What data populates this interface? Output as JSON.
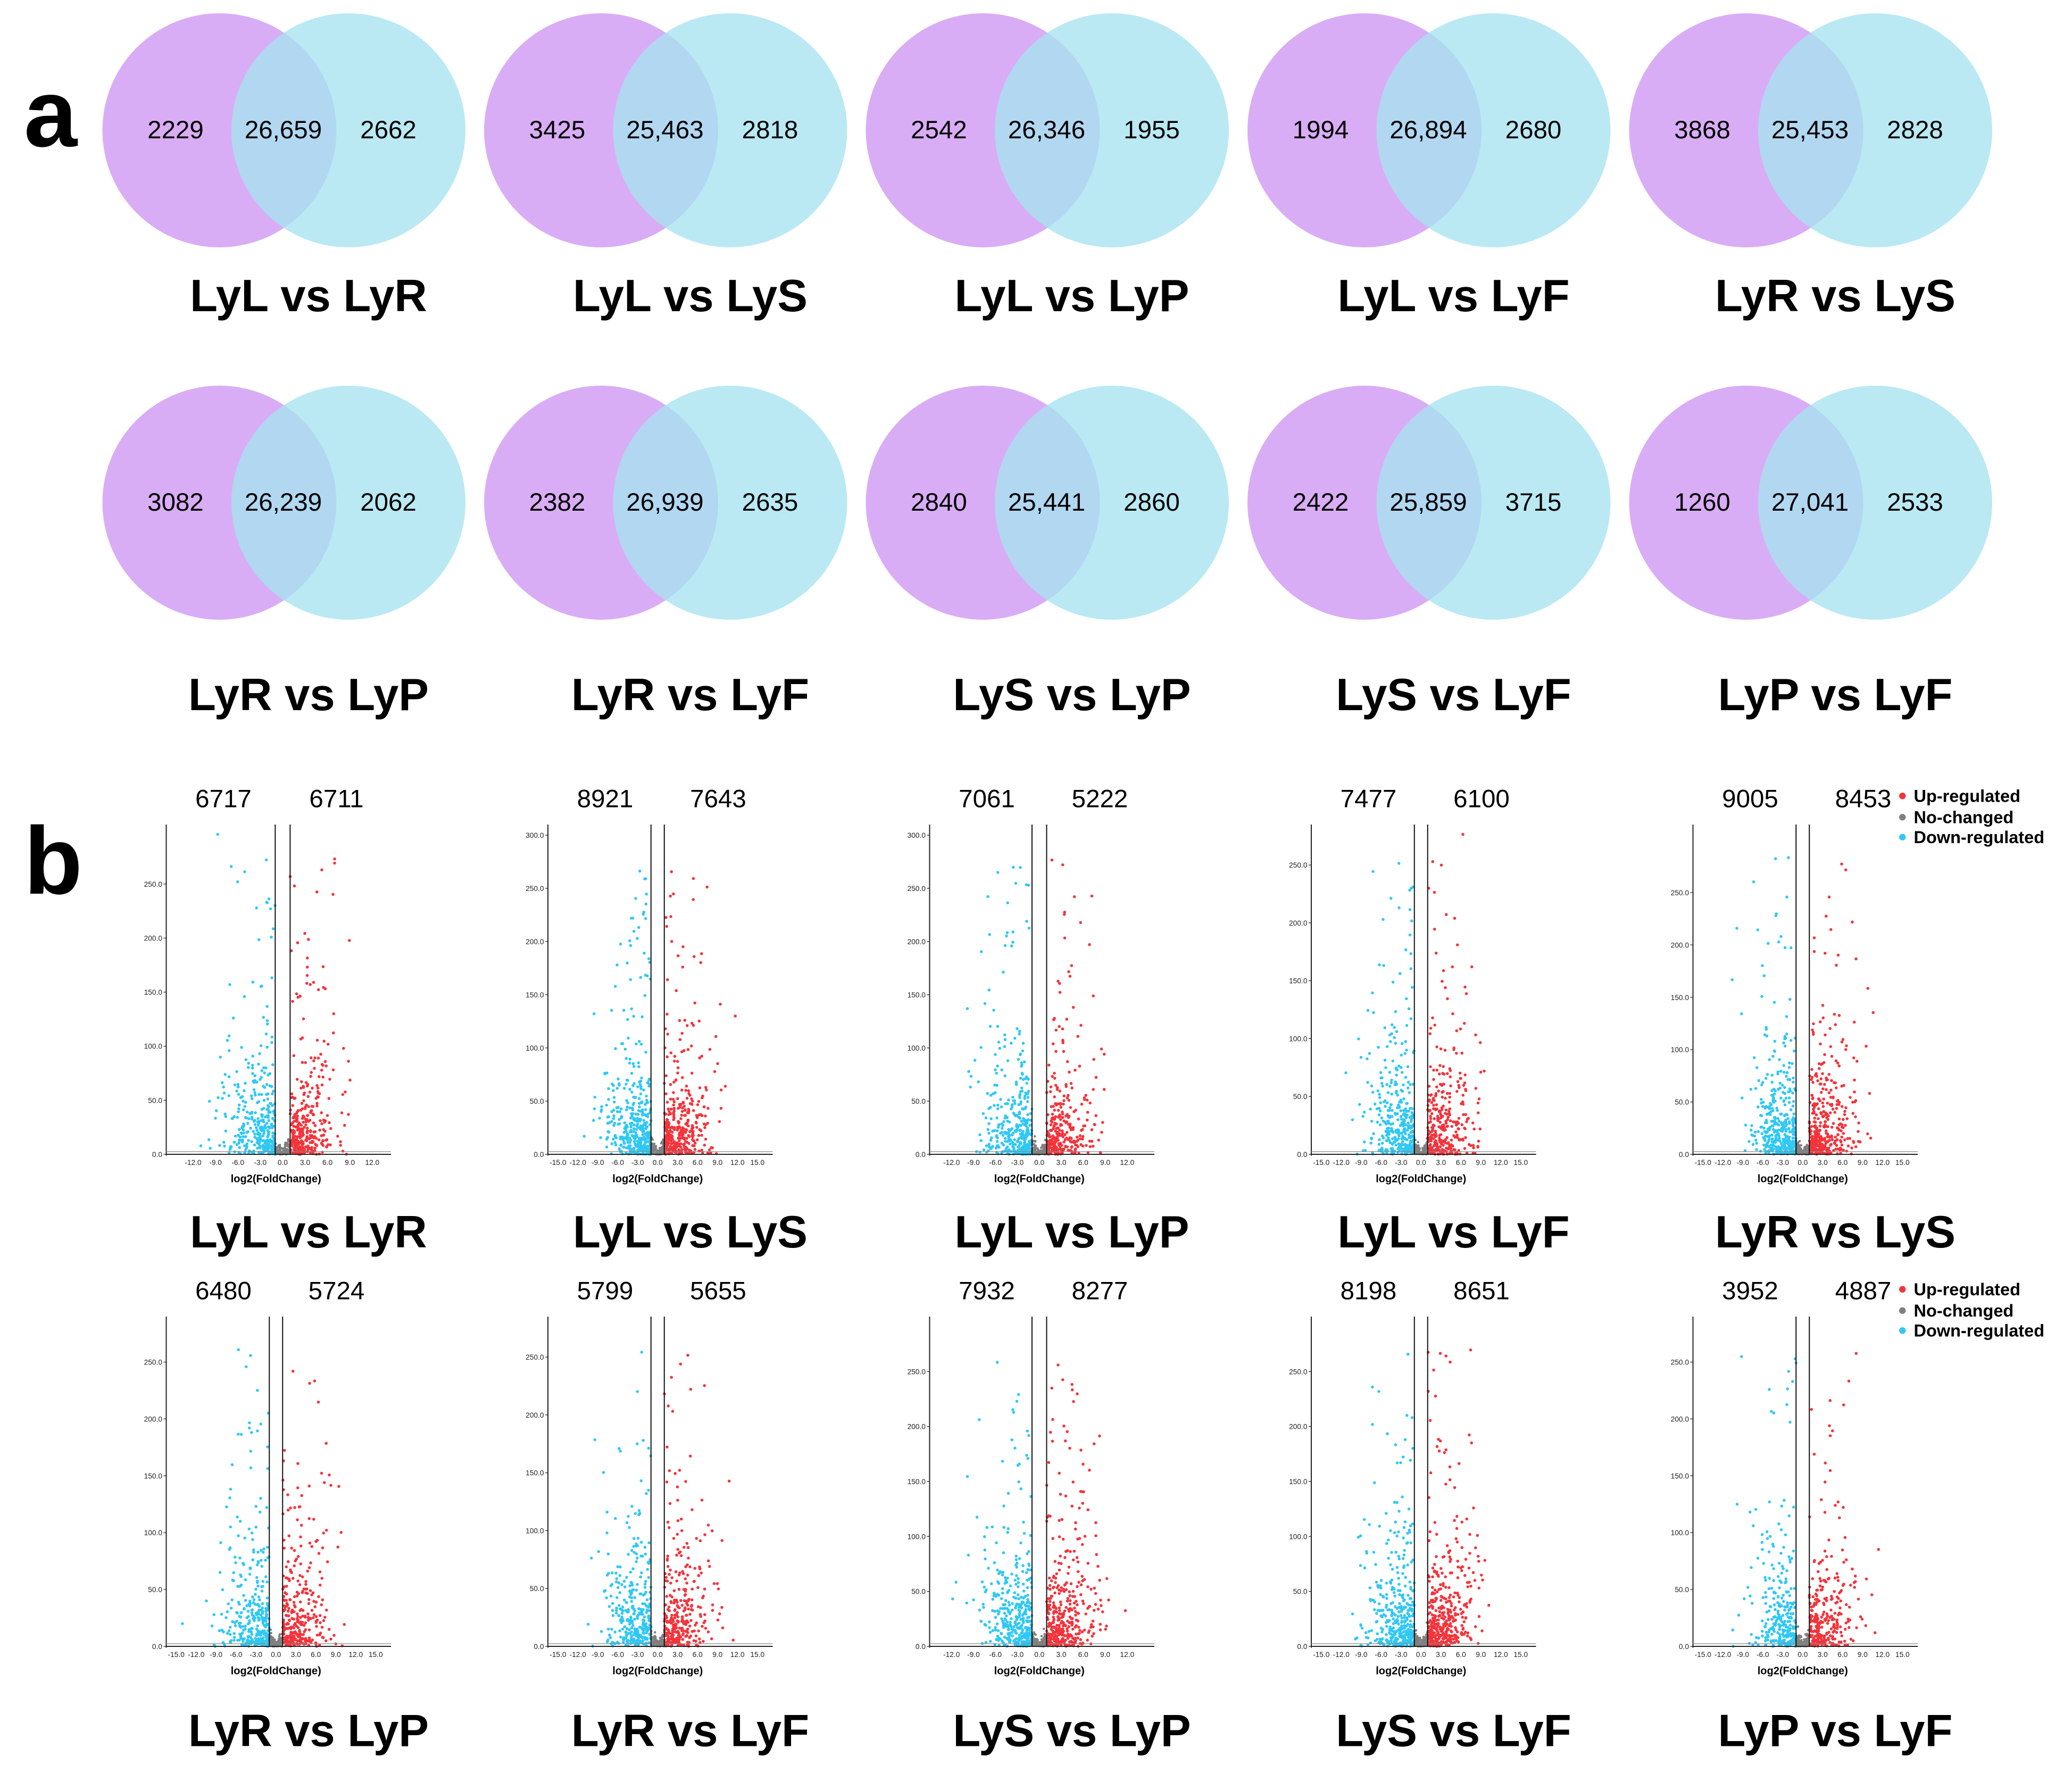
{
  "panel_labels": {
    "a": "a",
    "b": "b"
  },
  "colors": {
    "venn_left": "#d9adf5",
    "venn_right": "#a6e3f0",
    "up": "#f5333b",
    "none": "#7f7f7f",
    "down": "#2fc8f5"
  },
  "legend": {
    "up": "Up-regulated",
    "none": "No-changed",
    "down": "Down-regulated"
  },
  "chart_data": [
    {
      "type": "venn",
      "title": "LyL vs LyR",
      "left": "2229",
      "middle": "26,659",
      "right": "2662"
    },
    {
      "type": "venn",
      "title": "LyL vs LyS",
      "left": "3425",
      "middle": "25,463",
      "right": "2818"
    },
    {
      "type": "venn",
      "title": "LyL vs LyP",
      "left": "2542",
      "middle": "26,346",
      "right": "1955"
    },
    {
      "type": "venn",
      "title": "LyL vs LyF",
      "left": "1994",
      "middle": "26,894",
      "right": "2680"
    },
    {
      "type": "venn",
      "title": "LyR vs LyS",
      "left": "3868",
      "middle": "25,453",
      "right": "2828"
    },
    {
      "type": "venn",
      "title": "LyR vs LyP",
      "left": "3082",
      "middle": "26,239",
      "right": "2062"
    },
    {
      "type": "venn",
      "title": "LyR vs LyF",
      "left": "2382",
      "middle": "26,939",
      "right": "2635"
    },
    {
      "type": "venn",
      "title": "LyS vs LyP",
      "left": "2840",
      "middle": "25,441",
      "right": "2860"
    },
    {
      "type": "venn",
      "title": "LyS vs LyF",
      "left": "2422",
      "middle": "25,859",
      "right": "3715"
    },
    {
      "type": "venn",
      "title": "LyP vs LyF",
      "left": "1260",
      "middle": "27,041",
      "right": "2533"
    },
    {
      "type": "scatter",
      "title": "LyL vs LyR",
      "down": "6717",
      "up": "6711",
      "xlabel": "log2(FoldChange)",
      "xlim": [
        -15.6,
        13.8
      ],
      "xticks": [
        "-12.0",
        "-9.0",
        "-6.0",
        "-3.0",
        "0.0",
        "3.0",
        "6.0",
        "9.0",
        "12.0"
      ],
      "ylim": [
        0,
        305
      ],
      "yticks": [
        "0.0",
        "50.0",
        "100.0",
        "150.0",
        "200.0",
        "250.0"
      ],
      "threshold": 1
    },
    {
      "type": "scatter",
      "title": "LyL vs LyS",
      "down": "8921",
      "up": "7643",
      "xlabel": "log2(FoldChange)",
      "xlim": [
        -16.5,
        16.5
      ],
      "xticks": [
        "-15.0",
        "-12.0",
        "-9.0",
        "-6.0",
        "-3.0",
        "0.0",
        "3.0",
        "6.0",
        "9.0",
        "12.0",
        "15.0"
      ],
      "ylim": [
        0,
        310
      ],
      "yticks": [
        "0.0",
        "50.0",
        "100.0",
        "150.0",
        "200.0",
        "250.0",
        "300.0"
      ],
      "threshold": 1
    },
    {
      "type": "scatter",
      "title": "LyL vs LyP",
      "down": "7061",
      "up": "5222",
      "xlabel": "log2(FoldChange)",
      "xlim": [
        -15,
        15
      ],
      "xticks": [
        "-12.0",
        "-9.0",
        "-6.0",
        "-3.0",
        "0.0",
        "3.0",
        "6.0",
        "9.0",
        "12.0"
      ],
      "ylim": [
        0,
        310
      ],
      "yticks": [
        "0.0",
        "50.0",
        "100.0",
        "150.0",
        "200.0",
        "250.0",
        "300.0"
      ],
      "threshold": 1
    },
    {
      "type": "scatter",
      "title": "LyL vs LyF",
      "down": "7477",
      "up": "6100",
      "xlabel": "log2(FoldChange)",
      "xlim": [
        -16.5,
        16.5
      ],
      "xticks": [
        "-15.0",
        "-12.0",
        "-9.0",
        "-6.0",
        "-3.0",
        "0.0",
        "3.0",
        "6.0",
        "9.0",
        "12.0",
        "15.0"
      ],
      "ylim": [
        0,
        285
      ],
      "yticks": [
        "0.0",
        "50.0",
        "100.0",
        "150.0",
        "200.0",
        "250.0"
      ],
      "threshold": 1
    },
    {
      "type": "scatter",
      "title": "LyR vs LyS",
      "down": "9005",
      "up": "8453",
      "xlabel": "log2(FoldChange)",
      "xlim": [
        -16.5,
        16.5
      ],
      "xticks": [
        "-15.0",
        "-12.0",
        "-9.0",
        "-6.0",
        "-3.0",
        "0.0",
        "3.0",
        "6.0",
        "9.0",
        "12.0",
        "15.0"
      ],
      "ylim": [
        0,
        315
      ],
      "yticks": [
        "0.0",
        "50.0",
        "100.0",
        "150.0",
        "200.0",
        "250.0"
      ],
      "threshold": 1
    },
    {
      "type": "scatter",
      "title": "LyR vs LyP",
      "down": "6480",
      "up": "5724",
      "xlabel": "log2(FoldChange)",
      "xlim": [
        -16.5,
        16.5
      ],
      "xticks": [
        "-15.0",
        "-12.0",
        "-9.0",
        "-6.0",
        "-3.0",
        "0.0",
        "3.0",
        "6.0",
        "9.0",
        "12.0",
        "15.0"
      ],
      "ylim": [
        0,
        290
      ],
      "yticks": [
        "0.0",
        "50.0",
        "100.0",
        "150.0",
        "200.0",
        "250.0"
      ],
      "threshold": 1
    },
    {
      "type": "scatter",
      "title": "LyR vs LyF",
      "down": "5799",
      "up": "5655",
      "xlabel": "log2(FoldChange)",
      "xlim": [
        -16.5,
        16.5
      ],
      "xticks": [
        "-15.0",
        "-12.0",
        "-9.0",
        "-6.0",
        "-3.0",
        "0.0",
        "3.0",
        "6.0",
        "9.0",
        "12.0",
        "15.0"
      ],
      "ylim": [
        0,
        285
      ],
      "yticks": [
        "0.0",
        "50.0",
        "100.0",
        "150.0",
        "200.0",
        "250.0"
      ],
      "threshold": 1
    },
    {
      "type": "scatter",
      "title": "LyS vs LyP",
      "down": "7932",
      "up": "8277",
      "xlabel": "log2(FoldChange)",
      "xlim": [
        -15,
        15
      ],
      "xticks": [
        "-12.0",
        "-9.0",
        "-6.0",
        "-3.0",
        "0.0",
        "3.0",
        "6.0",
        "9.0",
        "12.0"
      ],
      "ylim": [
        0,
        300
      ],
      "yticks": [
        "0.0",
        "50.0",
        "100.0",
        "150.0",
        "200.0",
        "250.0"
      ],
      "threshold": 1
    },
    {
      "type": "scatter",
      "title": "LyS vs LyF",
      "down": "8198",
      "up": "8651",
      "xlabel": "log2(FoldChange)",
      "xlim": [
        -16.5,
        16.5
      ],
      "xticks": [
        "-15.0",
        "-12.0",
        "-9.0",
        "-6.0",
        "-3.0",
        "0.0",
        "3.0",
        "6.0",
        "9.0",
        "12.0",
        "15.0"
      ],
      "ylim": [
        0,
        300
      ],
      "yticks": [
        "0.0",
        "50.0",
        "100.0",
        "150.0",
        "200.0",
        "250.0"
      ],
      "threshold": 1
    },
    {
      "type": "scatter",
      "title": "LyP vs LyF",
      "down": "3952",
      "up": "4887",
      "xlabel": "log2(FoldChange)",
      "xlim": [
        -16.5,
        16.5
      ],
      "xticks": [
        "-15.0",
        "-12.0",
        "-9.0",
        "-6.0",
        "-3.0",
        "0.0",
        "3.0",
        "6.0",
        "9.0",
        "12.0",
        "15.0"
      ],
      "ylim": [
        0,
        290
      ],
      "yticks": [
        "0.0",
        "50.0",
        "100.0",
        "150.0",
        "200.0",
        "250.0"
      ],
      "threshold": 1
    }
  ]
}
